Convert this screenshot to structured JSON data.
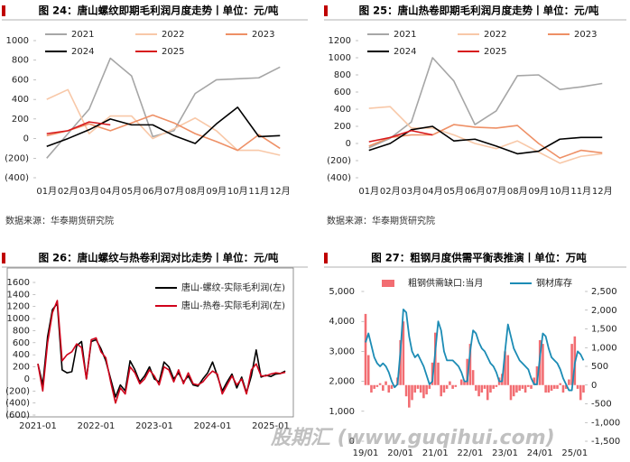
{
  "watermark": "股期汇 (www.guqihui.com)",
  "chart_data": [
    {
      "type": "line",
      "title": "图 24：唐山螺纹即期毛利润月度走势丨单位：元/吨",
      "source": "数据来源：华泰期货研究院",
      "categories": [
        "01月",
        "02月",
        "03月",
        "04月",
        "05月",
        "06月",
        "07月",
        "08月",
        "09月",
        "10月",
        "11月",
        "12月"
      ],
      "ylim": [
        -400,
        1000
      ],
      "yticks": [
        {
          "value": -400,
          "label": "(400)"
        },
        {
          "value": -200,
          "label": "(200)"
        },
        0,
        200,
        400,
        600,
        800,
        1000
      ],
      "series": [
        {
          "name": "2021",
          "color": "#a6a6a6",
          "values": [
            -200,
            50,
            300,
            820,
            640,
            20,
            80,
            460,
            600,
            610,
            620,
            730
          ]
        },
        {
          "name": "2022",
          "color": "#f8c8a8",
          "values": [
            400,
            500,
            50,
            230,
            230,
            0,
            100,
            210,
            80,
            -120,
            -120,
            -170
          ]
        },
        {
          "name": "2023",
          "color": "#ee9066",
          "values": [
            30,
            80,
            150,
            80,
            160,
            240,
            160,
            50,
            -30,
            -120,
            40,
            -100
          ]
        },
        {
          "name": "2024",
          "color": "#000000",
          "values": [
            -80,
            0,
            90,
            200,
            140,
            140,
            30,
            -50,
            150,
            320,
            20,
            30
          ]
        },
        {
          "name": "2025",
          "color": "#d7191c",
          "values": [
            50,
            80,
            170,
            140,
            null,
            null,
            null,
            null,
            null,
            null,
            null,
            null
          ]
        }
      ]
    },
    {
      "type": "line",
      "title": "图 25：唐山热卷即期毛利润月度走势丨单位：元/吨",
      "source": "数据来源：华泰期货研究院",
      "categories": [
        "01月",
        "02月",
        "03月",
        "04月",
        "05月",
        "06月",
        "07月",
        "08月",
        "09月",
        "10月",
        "11月",
        "12月"
      ],
      "ylim": [
        -400,
        1200
      ],
      "yticks": [
        {
          "value": -400,
          "label": "(400)"
        },
        {
          "value": -200,
          "label": "(200)"
        },
        0,
        200,
        400,
        600,
        800,
        1000,
        1200
      ],
      "series": [
        {
          "name": "2021",
          "color": "#a6a6a6",
          "values": [
            -50,
            60,
            250,
            1000,
            730,
            220,
            380,
            790,
            800,
            630,
            660,
            700
          ]
        },
        {
          "name": "2022",
          "color": "#f8c8a8",
          "values": [
            410,
            430,
            180,
            180,
            100,
            0,
            -60,
            30,
            -100,
            -230,
            -150,
            -120
          ]
        },
        {
          "name": "2023",
          "color": "#ee9066",
          "values": [
            -30,
            70,
            100,
            100,
            220,
            190,
            180,
            210,
            0,
            -170,
            -80,
            -110
          ]
        },
        {
          "name": "2024",
          "color": "#000000",
          "values": [
            -80,
            0,
            160,
            200,
            30,
            50,
            -30,
            -120,
            -90,
            50,
            70,
            70
          ]
        },
        {
          "name": "2025",
          "color": "#d7191c",
          "values": [
            20,
            70,
            150,
            100,
            null,
            null,
            null,
            null,
            null,
            null,
            null,
            null
          ]
        }
      ]
    },
    {
      "type": "line",
      "title": "图 26：唐山螺纹与热卷利润对比走势丨单位：元/吨",
      "categories": [
        "2021-01",
        null,
        null,
        null,
        null,
        null,
        null,
        null,
        null,
        null,
        null,
        null,
        "2022-01",
        null,
        null,
        null,
        null,
        null,
        null,
        null,
        null,
        null,
        null,
        null,
        "2023-01",
        null,
        null,
        null,
        null,
        null,
        null,
        null,
        null,
        null,
        null,
        null,
        "2024-01",
        null,
        null,
        null,
        null,
        null,
        null,
        null,
        null,
        null,
        null,
        null,
        "2025-01",
        null,
        null,
        null
      ],
      "ylim": [
        -600,
        1600
      ],
      "yticks": [
        {
          "value": -600,
          "label": "(600)"
        },
        {
          "value": -400,
          "label": "(400)"
        },
        {
          "value": -200,
          "label": "(200)"
        },
        0,
        200,
        400,
        600,
        800,
        1000,
        1200,
        1400,
        1600
      ],
      "series": [
        {
          "name": "唐山-螺纹-实际毛利润(左)",
          "color": "#000000",
          "values": [
            250,
            -100,
            700,
            1150,
            1250,
            150,
            100,
            120,
            550,
            620,
            0,
            620,
            650,
            500,
            300,
            0,
            -300,
            -100,
            -200,
            300,
            150,
            -50,
            50,
            200,
            0,
            -50,
            280,
            200,
            0,
            100,
            -50,
            50,
            -100,
            -120,
            0,
            100,
            280,
            50,
            -200,
            -50,
            80,
            -150,
            30,
            -230,
            50,
            480,
            30,
            60,
            40,
            80,
            90,
            130
          ]
        },
        {
          "name": "唐山-热卷-实际毛利润(左)",
          "color": "#d0021b",
          "values": [
            250,
            -200,
            600,
            1100,
            1300,
            300,
            400,
            450,
            580,
            520,
            0,
            650,
            680,
            450,
            350,
            -50,
            -400,
            -150,
            -250,
            200,
            100,
            -80,
            0,
            150,
            50,
            -100,
            200,
            150,
            -50,
            150,
            -80,
            100,
            -80,
            -100,
            -50,
            50,
            130,
            80,
            -250,
            -100,
            50,
            -100,
            0,
            -250,
            150,
            250,
            50,
            50,
            80,
            100,
            90,
            110
          ]
        }
      ]
    },
    {
      "type": "combo",
      "title": "图 27：粗钢月度供需平衡表推演丨单位：万吨",
      "categories": [
        "19/01",
        null,
        null,
        null,
        null,
        null,
        null,
        null,
        null,
        null,
        null,
        null,
        "20/01",
        null,
        null,
        null,
        null,
        null,
        null,
        null,
        null,
        null,
        null,
        null,
        "21/01",
        null,
        null,
        null,
        null,
        null,
        null,
        null,
        null,
        null,
        null,
        null,
        "22/01",
        null,
        null,
        null,
        null,
        null,
        null,
        null,
        null,
        null,
        null,
        null,
        "23/01",
        null,
        null,
        null,
        null,
        null,
        null,
        null,
        null,
        null,
        null,
        null,
        "24/01",
        null,
        null,
        null,
        null,
        null,
        null,
        null,
        null,
        null,
        null,
        null,
        "25/01",
        null,
        null,
        null
      ],
      "ylim": [
        0,
        5000
      ],
      "yticks": [
        0,
        {
          "value": 1000,
          "label": "1,000"
        },
        {
          "value": 2000,
          "label": "2,000"
        },
        {
          "value": 3000,
          "label": "3,000"
        },
        {
          "value": 4000,
          "label": "4,000"
        },
        {
          "value": 5000,
          "label": "5,000"
        }
      ],
      "y2lim": [
        -1500,
        2500
      ],
      "y2ticks": [
        {
          "value": -1500,
          "label": "-1,500"
        },
        {
          "value": -1000,
          "label": "-1,000"
        },
        -500,
        0,
        500,
        {
          "value": 1000,
          "label": "1,000"
        },
        {
          "value": 1500,
          "label": "1,500"
        },
        {
          "value": 2000,
          "label": "2,000"
        },
        {
          "value": 2500,
          "label": "2,500"
        }
      ],
      "series": [
        {
          "name": "粗钢供需缺口:当月",
          "type": "bar",
          "axis": "y2",
          "color": "#f26d72",
          "values": [
            1900,
            800,
            -200,
            -100,
            -50,
            50,
            -150,
            100,
            -200,
            -100,
            -50,
            200,
            1200,
            1700,
            -300,
            -600,
            -400,
            -200,
            -100,
            -200,
            -350,
            -250,
            -100,
            600,
            1400,
            600,
            -300,
            -200,
            -100,
            100,
            -100,
            -50,
            0,
            150,
            100,
            700,
            1100,
            400,
            -150,
            -300,
            -200,
            -100,
            -400,
            -200,
            -100,
            -50,
            200,
            300,
            900,
            800,
            -400,
            -300,
            -200,
            -150,
            -100,
            -200,
            -50,
            -100,
            200,
            500,
            1200,
            1100,
            -200,
            -200,
            -150,
            -100,
            -100,
            50,
            -200,
            -100,
            150,
            1100,
            1300,
            -100,
            -400,
            -200
          ]
        },
        {
          "name": "钢材库存",
          "type": "line",
          "color": "#1c8cb5",
          "values": [
            3300,
            3600,
            3200,
            2800,
            2600,
            2500,
            2600,
            2500,
            2300,
            2000,
            1800,
            1900,
            3000,
            4400,
            4300,
            3500,
            3000,
            2800,
            2900,
            2700,
            2500,
            2200,
            1900,
            2000,
            3000,
            4000,
            3700,
            3000,
            2700,
            2700,
            2700,
            2600,
            2500,
            2300,
            2000,
            2000,
            3000,
            3700,
            3600,
            3300,
            3100,
            3000,
            2800,
            2600,
            2500,
            2300,
            2000,
            2000,
            3000,
            3900,
            3500,
            3100,
            2900,
            2700,
            2600,
            2500,
            2400,
            2100,
            1900,
            1900,
            2800,
            3600,
            3500,
            3100,
            2800,
            2700,
            2600,
            2400,
            2100,
            1900,
            1700,
            1700,
            2600,
            3000,
            2900,
            2700
          ]
        }
      ]
    }
  ]
}
